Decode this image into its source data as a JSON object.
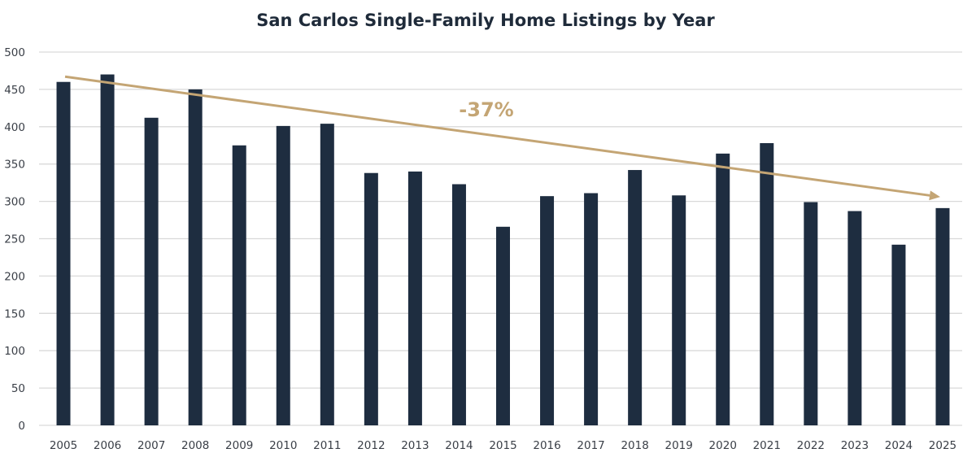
{
  "chart_data": {
    "type": "bar",
    "title": "San Carlos Single-Family Home Listings by Year",
    "xlabel": "",
    "ylabel": "",
    "ylim": [
      0,
      500
    ],
    "yticks": [
      0,
      50,
      100,
      150,
      200,
      250,
      300,
      350,
      400,
      450,
      500
    ],
    "grid": true,
    "legend": "none",
    "categories": [
      "2005",
      "2006",
      "2007",
      "2008",
      "2009",
      "2010",
      "2011",
      "2012",
      "2013",
      "2014",
      "2015",
      "2016",
      "2017",
      "2018",
      "2019",
      "2020",
      "2021",
      "2022",
      "2023",
      "2024",
      "2025"
    ],
    "values": [
      460,
      470,
      412,
      450,
      375,
      401,
      404,
      338,
      340,
      323,
      266,
      307,
      311,
      342,
      308,
      364,
      378,
      299,
      287,
      242,
      291
    ],
    "trend_arrow": {
      "from_value": 467,
      "to_value": 306,
      "from_category": "2005",
      "to_category": "2025"
    },
    "annotation": {
      "text": "-37%"
    },
    "colors": {
      "bar": "#1e2d40",
      "trend": "#c4a574",
      "grid": "#d9d9d9",
      "title": "#1f2b3a",
      "ticks": "#3a3f47"
    }
  }
}
